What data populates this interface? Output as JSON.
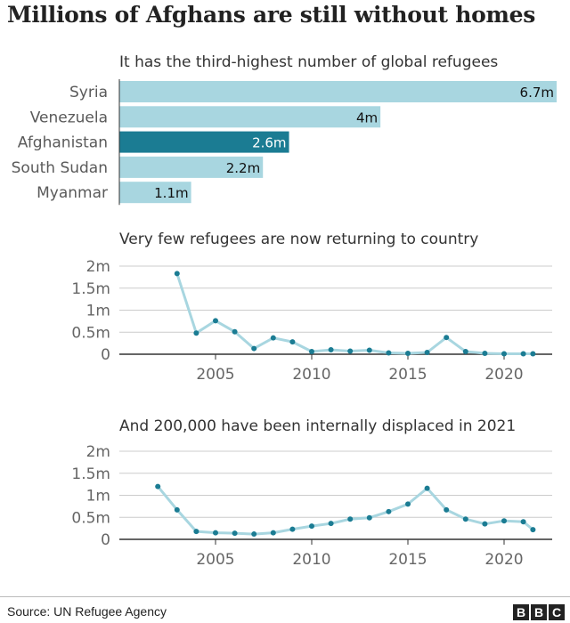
{
  "title": "Millions of Afghans are still without homes",
  "source": "Source: UN Refugee Agency",
  "logo": [
    "B",
    "B",
    "C"
  ],
  "colors": {
    "bar": "#a8d6e0",
    "bar_highlight": "#1b7c93",
    "line": "#a8d6e0",
    "point": "#1b7c93",
    "grid": "#cccccc",
    "axis": "#333333",
    "tick_text": "#666666",
    "label_text": "#5a5a5a"
  },
  "chart_data": [
    {
      "type": "bar",
      "orientation": "horizontal",
      "title": "It has the third-highest number of global refugees",
      "categories": [
        "Syria",
        "Venezuela",
        "Afghanistan",
        "South Sudan",
        "Myanmar"
      ],
      "values": [
        6.7,
        4,
        2.6,
        2.2,
        1.1
      ],
      "value_labels": [
        "6.7m",
        "4m",
        "2.6m",
        "2.2m",
        "1.1m"
      ],
      "highlight": "Afghanistan",
      "unit": "millions"
    },
    {
      "type": "line",
      "title": "Very few refugees are now returning to country",
      "x": [
        2003,
        2004,
        2005,
        2006,
        2007,
        2008,
        2009,
        2010,
        2011,
        2012,
        2013,
        2014,
        2015,
        2016,
        2017,
        2018,
        2019,
        2020,
        2021,
        2021.5
      ],
      "y": [
        1.83,
        0.48,
        0.76,
        0.51,
        0.13,
        0.37,
        0.28,
        0.06,
        0.1,
        0.07,
        0.09,
        0.03,
        0.02,
        0.04,
        0.38,
        0.06,
        0.02,
        0.01,
        0.01,
        0.01
      ],
      "xlim": [
        2000,
        2022.5
      ],
      "ylim": [
        0,
        2
      ],
      "xticks": [
        2005,
        2010,
        2015,
        2020
      ],
      "xtick_labels": [
        "2005",
        "2010",
        "2015",
        "2020"
      ],
      "yticks": [
        0,
        0.5,
        1,
        1.5,
        2
      ],
      "ytick_labels": [
        "0",
        "0.5m",
        "1m",
        "1.5m",
        "2m"
      ],
      "grid": true
    },
    {
      "type": "line",
      "title": "And 200,000 have been internally displaced in 2021",
      "x": [
        2002,
        2003,
        2004,
        2005,
        2006,
        2007,
        2008,
        2009,
        2010,
        2011,
        2012,
        2013,
        2014,
        2015,
        2016,
        2017,
        2018,
        2019,
        2020,
        2021,
        2021.5
      ],
      "y": [
        1.2,
        0.67,
        0.18,
        0.15,
        0.14,
        0.12,
        0.15,
        0.23,
        0.3,
        0.36,
        0.46,
        0.49,
        0.63,
        0.8,
        1.16,
        0.67,
        0.46,
        0.35,
        0.42,
        0.4,
        0.22
      ],
      "xlim": [
        2000,
        2022.5
      ],
      "ylim": [
        0,
        2
      ],
      "xticks": [
        2005,
        2010,
        2015,
        2020
      ],
      "xtick_labels": [
        "2005",
        "2010",
        "2015",
        "2020"
      ],
      "yticks": [
        0,
        0.5,
        1,
        1.5,
        2
      ],
      "ytick_labels": [
        "0",
        "0.5m",
        "1m",
        "1.5m",
        "2m"
      ],
      "grid": true
    }
  ]
}
